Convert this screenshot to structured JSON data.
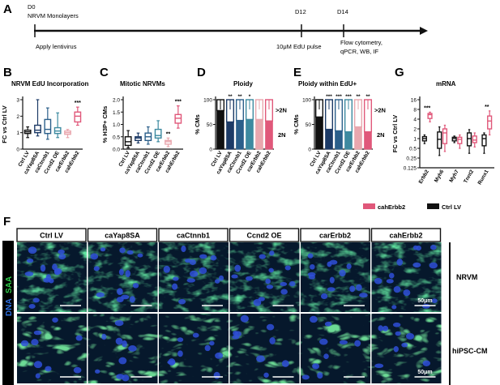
{
  "timeline": {
    "panel": "A",
    "d0": "D0",
    "d0_sub": "NRVM Monolayers",
    "apply": "Apply lentivirus",
    "d12": "D12",
    "edu": "10μM EdU pulse",
    "d14": "D14",
    "assays": [
      "Flow cytometry,",
      "qPCR, WB, IF"
    ]
  },
  "conditions": [
    "Ctrl LV",
    "caYap8SA",
    "caCtnnb1",
    "Ccnd2 OE",
    "carErbb2",
    "cahErbb2"
  ],
  "colors": {
    "ctrl": "#111111",
    "yap": "#1c3a66",
    "ctnnb": "#2b5f8a",
    "ccnd": "#3d8aa0",
    "carerbb": "#e9a7ae",
    "caherbb": "#e0587a",
    "cell": "#06182c"
  },
  "chart_data": [
    {
      "panel": "B",
      "type": "box",
      "title": "NRVM EdU Incorporation",
      "ylabel": "FC vs Ctrl LV",
      "ylim": [
        0,
        3
      ],
      "yticks": [
        "0",
        "1",
        "2",
        "3"
      ],
      "categories": [
        "Ctrl LV",
        "caYap8SA",
        "caCtnnb1",
        "Ccnd2 OE",
        "carErbb2",
        "cahErbb2"
      ],
      "boxes": [
        {
          "min": 0.7,
          "q1": 0.95,
          "median": 1.05,
          "q3": 1.15,
          "max": 1.35
        },
        {
          "min": 0.8,
          "q1": 1.0,
          "median": 1.15,
          "q3": 1.45,
          "max": 3.0
        },
        {
          "min": 0.6,
          "q1": 0.95,
          "median": 1.2,
          "q3": 1.8,
          "max": 2.5
        },
        {
          "min": 0.7,
          "q1": 0.95,
          "median": 1.1,
          "q3": 1.3,
          "max": 2.2
        },
        {
          "min": 0.7,
          "q1": 0.9,
          "median": 1.0,
          "q3": 1.1,
          "max": 1.2
        },
        {
          "min": 1.45,
          "q1": 1.65,
          "median": 2.0,
          "q3": 2.25,
          "max": 2.55
        }
      ],
      "annotations": [
        "",
        "",
        "",
        "",
        "",
        "***"
      ]
    },
    {
      "panel": "C",
      "type": "box",
      "title": "Mitotic NRVMs",
      "ylabel": "% H3P+ CMs",
      "ylim": [
        0,
        2
      ],
      "yticks": [
        "0.0",
        "0.5",
        "1.0",
        "1.5",
        "2.0"
      ],
      "categories": [
        "Ctrl LV",
        "caYap8SA",
        "caCtnnb1",
        "Ccnd2 OE",
        "carErbb2",
        "cahErbb2"
      ],
      "boxes": [
        {
          "min": 0.05,
          "q1": 0.15,
          "median": 0.3,
          "q3": 0.5,
          "max": 0.75
        },
        {
          "min": 0.25,
          "q1": 0.35,
          "median": 0.45,
          "q3": 0.5,
          "max": 0.65
        },
        {
          "min": 0.2,
          "q1": 0.35,
          "median": 0.5,
          "q3": 0.65,
          "max": 0.9
        },
        {
          "min": 0.3,
          "q1": 0.45,
          "median": 0.55,
          "q3": 0.8,
          "max": 1.15
        },
        {
          "min": 0.1,
          "q1": 0.2,
          "median": 0.3,
          "q3": 0.35,
          "max": 0.45
        },
        {
          "min": 0.85,
          "q1": 1.05,
          "median": 1.25,
          "q3": 1.4,
          "max": 1.75
        }
      ],
      "annotations": [
        "",
        "",
        "",
        "",
        "**",
        "***"
      ]
    },
    {
      "panel": "D",
      "type": "stacked-bar",
      "title": "Ploidy",
      "ylabel": "% CMs",
      "ylim": [
        0,
        100
      ],
      "yticks": [
        "0",
        "50",
        "100"
      ],
      "categories": [
        "Ctrl LV",
        "caYap8SA",
        "caCtnnb1",
        "Ccnd2 OE",
        "carErbb2",
        "cahErbb2"
      ],
      "series": [
        {
          "name": "2N",
          "values": [
            78,
            55,
            58,
            60,
            60,
            57
          ]
        },
        {
          "name": ">2N",
          "values": [
            22,
            45,
            42,
            40,
            40,
            43
          ]
        }
      ],
      "annotations": [
        "",
        "**",
        "**",
        "*",
        "",
        ""
      ]
    },
    {
      "panel": "E",
      "type": "stacked-bar",
      "title": "Ploidy within  EdU+",
      "ylabel": "% CMs",
      "ylim": [
        0,
        100
      ],
      "yticks": [
        "0",
        "50",
        "100"
      ],
      "categories": [
        "Ctrl LV",
        "caYap8SA",
        "caCtnnb1",
        "Ccnd2 OE",
        "carErbb2",
        "cahErbb2"
      ],
      "series": [
        {
          "name": "2N",
          "values": [
            65,
            40,
            37,
            35,
            45,
            35
          ]
        },
        {
          "name": ">2N",
          "values": [
            35,
            60,
            63,
            65,
            55,
            65
          ]
        }
      ],
      "annotations": [
        "",
        "***",
        "***",
        "***",
        "**",
        "**"
      ]
    },
    {
      "panel": "G",
      "type": "box",
      "title": "mRNA",
      "ylabel": "FC vs Ctrl LV",
      "scale": "log2",
      "ylim": [
        0.125,
        16
      ],
      "yticks": [
        "0.125",
        "0.25",
        "0.5",
        "1",
        "2",
        "4",
        "8",
        "16"
      ],
      "categories": [
        "Erbb2",
        "Myh6",
        "Myh7",
        "Tnnt2",
        "Runx1"
      ],
      "series": [
        {
          "name": "Ctrl LV",
          "boxes": [
            {
              "min": 0.7,
              "q1": 0.85,
              "median": 1.0,
              "q3": 1.15,
              "max": 1.3
            },
            {
              "min": 0.3,
              "q1": 0.5,
              "median": 0.95,
              "q3": 1.6,
              "max": 2.3
            },
            {
              "min": 0.75,
              "q1": 0.85,
              "median": 1.0,
              "q3": 1.1,
              "max": 1.2
            },
            {
              "min": 0.35,
              "q1": 0.6,
              "median": 1.0,
              "q3": 1.5,
              "max": 1.9
            },
            {
              "min": 0.35,
              "q1": 0.6,
              "median": 1.0,
              "q3": 1.3,
              "max": 1.5
            }
          ]
        },
        {
          "name": "cahErbb2",
          "boxes": [
            {
              "min": 3.3,
              "q1": 4.2,
              "median": 5.5,
              "q3": 6.0,
              "max": 6.6
            },
            {
              "min": 0.4,
              "q1": 0.7,
              "median": 1.5,
              "q3": 2.0,
              "max": 2.6
            },
            {
              "min": 0.5,
              "q1": 0.7,
              "median": 0.95,
              "q3": 1.1,
              "max": 1.3
            },
            {
              "min": 0.55,
              "q1": 0.75,
              "median": 0.9,
              "q3": 1.2,
              "max": 1.5
            },
            {
              "min": 1.3,
              "q1": 2.0,
              "median": 3.5,
              "q3": 5.0,
              "max": 7.2
            }
          ]
        }
      ],
      "annotations": [
        "***",
        "",
        "",
        "",
        "**"
      ]
    }
  ],
  "legend_g": [
    "cahErbb2",
    "Ctrl LV"
  ],
  "micro": {
    "panel": "F",
    "stain_dna": "DNA",
    "stain_saa": "SAA",
    "headers": [
      "Ctrl LV",
      "caYap8SA",
      "caCtnnb1",
      "Ccnd2 OE",
      "carErbb2",
      "cahErbb2"
    ],
    "rows": [
      "NRVM",
      "hiPSC-CM"
    ],
    "scale_label": "50μm"
  }
}
